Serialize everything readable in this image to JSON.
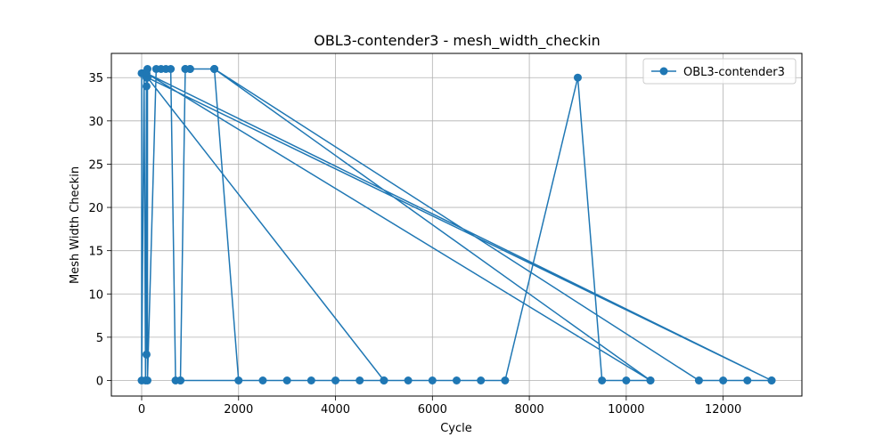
{
  "chart_data": {
    "type": "line",
    "title": "OBL3-contender3 - mesh_width_checkin",
    "xlabel": "Cycle",
    "ylabel": "Mesh Width Checkin",
    "xlim": [
      -625,
      13625
    ],
    "ylim": [
      -1.8,
      37.8
    ],
    "xticks": [
      0,
      2000,
      4000,
      6000,
      8000,
      10000,
      12000
    ],
    "yticks": [
      0,
      5,
      10,
      15,
      20,
      25,
      30,
      35
    ],
    "grid": true,
    "legend_position": "top-right",
    "color": "#1f77b4",
    "series": [
      {
        "name": "OBL3-contender3",
        "points": [
          [
            0,
            35.5
          ],
          [
            0,
            0
          ],
          [
            50,
            35.5
          ],
          [
            80,
            0
          ],
          [
            100,
            35
          ],
          [
            100,
            34
          ],
          [
            100,
            3
          ],
          [
            120,
            36
          ],
          [
            120,
            0
          ],
          [
            300,
            36
          ],
          [
            400,
            36
          ],
          [
            500,
            36
          ],
          [
            600,
            36
          ],
          [
            700,
            0
          ],
          [
            800,
            0
          ],
          [
            900,
            36
          ],
          [
            1000,
            36
          ],
          [
            1500,
            36
          ],
          [
            10500,
            0
          ],
          [
            1500,
            36
          ],
          [
            11500,
            0
          ],
          [
            12000,
            0
          ],
          [
            12500,
            0
          ],
          [
            13000,
            0
          ],
          [
            120,
            35
          ],
          [
            5000,
            0
          ],
          [
            4500,
            0
          ],
          [
            4000,
            0
          ],
          [
            3500,
            0
          ],
          [
            3000,
            0
          ],
          [
            2500,
            0
          ],
          [
            2000,
            0
          ],
          [
            1500,
            36
          ],
          [
            1000,
            36
          ],
          [
            900,
            36
          ],
          [
            800,
            0
          ],
          [
            5000,
            0
          ],
          [
            5500,
            0
          ],
          [
            6000,
            0
          ],
          [
            6500,
            0
          ],
          [
            7000,
            0
          ],
          [
            7500,
            0
          ],
          [
            9000,
            35
          ],
          [
            9500,
            0
          ],
          [
            10000,
            0
          ],
          [
            10500,
            0
          ],
          [
            100,
            35.5
          ],
          [
            13000,
            0
          ]
        ]
      }
    ]
  }
}
